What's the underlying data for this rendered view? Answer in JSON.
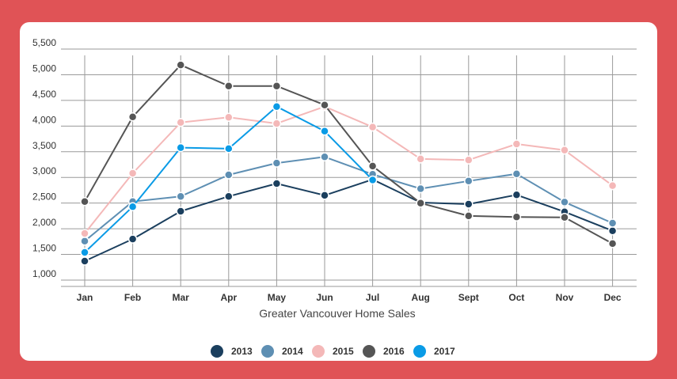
{
  "chart_data": {
    "type": "line",
    "title": "",
    "xlabel": "Greater Vancouver Home Sales",
    "ylabel": "",
    "categories": [
      "Jan",
      "Feb",
      "Mar",
      "Apr",
      "May",
      "Jun",
      "Jul",
      "Aug",
      "Sept",
      "Oct",
      "Nov",
      "Dec"
    ],
    "y_ticks": [
      "1,000",
      "1,500",
      "2,000",
      "2,500",
      "3,000",
      "3,500",
      "4,000",
      "4,500",
      "5,000",
      "5,500"
    ],
    "ylim": [
      1000,
      5500
    ],
    "grid": true,
    "legend_position": "bottom",
    "series": [
      {
        "name": "2013",
        "color": "#1b3f5e",
        "values": [
          1370,
          1800,
          2340,
          2630,
          2880,
          2650,
          2960,
          2510,
          2480,
          2660,
          2330,
          1960
        ]
      },
      {
        "name": "2014",
        "color": "#5e8fb3",
        "values": [
          1760,
          2530,
          2630,
          3050,
          3280,
          3400,
          3060,
          2780,
          2930,
          3070,
          2520,
          2110
        ]
      },
      {
        "name": "2015",
        "color": "#f4b8b8",
        "values": [
          1910,
          3080,
          4070,
          4170,
          4050,
          4380,
          3980,
          3360,
          3340,
          3650,
          3530,
          2840
        ]
      },
      {
        "name": "2016",
        "color": "#555555",
        "values": [
          2530,
          4180,
          5190,
          4780,
          4780,
          4410,
          3220,
          2500,
          2250,
          2230,
          2220,
          1710
        ]
      },
      {
        "name": "2017",
        "color": "#0a9be6",
        "values": [
          1540,
          2430,
          3580,
          3560,
          4380,
          3900,
          2950,
          null,
          null,
          null,
          null,
          null
        ]
      }
    ]
  }
}
